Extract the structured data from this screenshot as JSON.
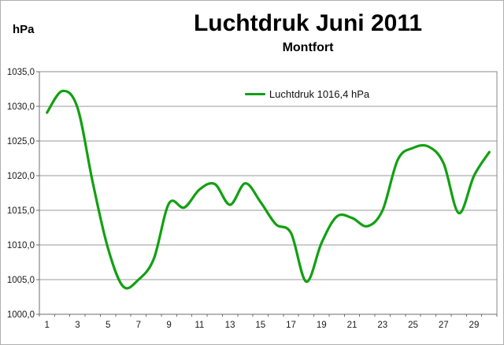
{
  "header": {
    "title": "Luchtdruk Juni 2011",
    "subtitle": "Montfort",
    "unit": "hPa"
  },
  "legend": {
    "label": "Luchtdruk 1016,4 hPa"
  },
  "colors": {
    "series_green": "#12A012",
    "gridline": "#9a9a9a",
    "plot_border": "#8a8a8a",
    "axis": "#6e6e6e",
    "tick_label": "#1a1a1a",
    "background": "#ffffff",
    "frame_border": "#b0b0b0"
  },
  "chart_data": {
    "type": "line",
    "title": "Luchtdruk Juni 2011",
    "subtitle": "Montfort",
    "xlabel": "",
    "ylabel": "hPa",
    "smooth": true,
    "grid": true,
    "legend_position": "top-center",
    "ylim": [
      1000,
      1035
    ],
    "ytick_step": 5,
    "ytick_labels": [
      "1035,0",
      "1030,0",
      "1025,0",
      "1020,0",
      "1015,0",
      "1010,0",
      "1005,0",
      "1000,0"
    ],
    "xtick_labels": [
      "1",
      "3",
      "5",
      "7",
      "9",
      "11",
      "13",
      "15",
      "17",
      "19",
      "21",
      "23",
      "25",
      "27",
      "29"
    ],
    "x": [
      1,
      2,
      3,
      4,
      5,
      6,
      7,
      8,
      9,
      10,
      11,
      12,
      13,
      14,
      15,
      16,
      17,
      18,
      19,
      20,
      21,
      22,
      23,
      24,
      25,
      26,
      27,
      28,
      29,
      30
    ],
    "series": [
      {
        "name": "Luchtdruk 1016,4 hPa",
        "color": "#12A012",
        "values": [
          1029.1,
          1032.2,
          1029.8,
          1019.0,
          1009.5,
          1004.0,
          1005.0,
          1008.0,
          1016.0,
          1015.4,
          1018.0,
          1018.8,
          1015.8,
          1018.9,
          1016.2,
          1013.0,
          1011.7,
          1004.7,
          1010.3,
          1014.1,
          1013.9,
          1012.7,
          1015.0,
          1022.3,
          1024.0,
          1024.2,
          1021.8,
          1014.6,
          1020.0,
          1023.4
        ]
      }
    ]
  }
}
